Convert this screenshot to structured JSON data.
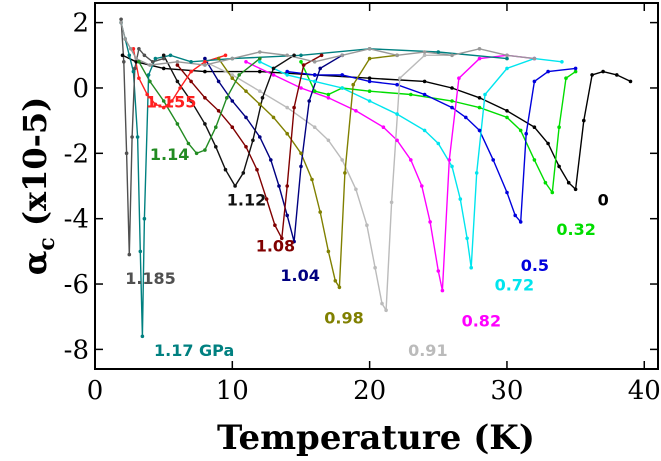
{
  "chart_data": {
    "type": "line",
    "xlabel": "Temperature (K)",
    "ylabel_main": "α",
    "ylabel_sub": "c",
    "ylabel_rest": " (x10-5)",
    "xlim": [
      0,
      41
    ],
    "ylim": [
      -8.6,
      2.6
    ],
    "xticks": [
      0,
      10,
      20,
      30,
      40
    ],
    "yticks": [
      2,
      0,
      -2,
      -4,
      -6,
      -8
    ],
    "grid": false,
    "series": [
      {
        "name": "0",
        "color": "#000000",
        "label_at": [
          36.6,
          -3.6
        ],
        "x": [
          2,
          3,
          5,
          8,
          12,
          16,
          20,
          24,
          26,
          28,
          30,
          32,
          33,
          33.8,
          34.5,
          35.0,
          35.6,
          36.2,
          37,
          38,
          39
        ],
        "y": [
          1.0,
          0.8,
          0.6,
          0.5,
          0.5,
          0.4,
          0.3,
          0.2,
          0.0,
          -0.3,
          -0.7,
          -1.2,
          -1.7,
          -2.4,
          -2.9,
          -3.1,
          -1.0,
          0.4,
          0.5,
          0.4,
          0.2
        ]
      },
      {
        "name": "0.32",
        "color": "#00dd00",
        "label_at": [
          33.6,
          -4.5
        ],
        "x": [
          15,
          16,
          17,
          18,
          20,
          23,
          26,
          28,
          30,
          31,
          32,
          32.8,
          33.3,
          33.8,
          34.3,
          35
        ],
        "y": [
          0.8,
          -0.1,
          -0.2,
          0.0,
          -0.1,
          -0.2,
          -0.4,
          -0.6,
          -0.9,
          -1.3,
          -2.2,
          -2.9,
          -3.2,
          -1.2,
          0.3,
          0.5
        ]
      },
      {
        "name": "0.5",
        "color": "#0000dd",
        "label_at": [
          31.0,
          -5.6
        ],
        "x": [
          14,
          16,
          18,
          20,
          22,
          24,
          26,
          27,
          28,
          29,
          30,
          30.6,
          31.0,
          31.4,
          32,
          33,
          35
        ],
        "y": [
          0.5,
          0.4,
          0.4,
          0.2,
          0.1,
          -0.2,
          -0.6,
          -0.9,
          -1.3,
          -2.2,
          -3.2,
          -3.9,
          -4.1,
          -1.4,
          0.2,
          0.5,
          0.6
        ]
      },
      {
        "name": "0.72",
        "color": "#00e5ee",
        "label_at": [
          29.1,
          -6.2
        ],
        "x": [
          12,
          14,
          16,
          18,
          20,
          22,
          24,
          25,
          26,
          26.6,
          27.1,
          27.4,
          27.8,
          28.4,
          30,
          32,
          34
        ],
        "y": [
          0.8,
          0.4,
          0.2,
          0.0,
          -0.4,
          -0.8,
          -1.3,
          -1.7,
          -2.4,
          -3.4,
          -4.6,
          -5.5,
          -2.6,
          -0.2,
          0.6,
          0.9,
          0.8
        ]
      },
      {
        "name": "0.82",
        "color": "#ff00ff",
        "label_at": [
          26.7,
          -7.3
        ],
        "x": [
          11,
          13,
          15,
          17,
          19,
          21,
          22,
          23,
          23.8,
          24.4,
          25.0,
          25.3,
          25.8,
          26.5,
          28,
          30,
          32
        ],
        "y": [
          0.8,
          0.4,
          0.0,
          -0.3,
          -0.7,
          -1.2,
          -1.6,
          -2.2,
          -3.0,
          -4.1,
          -5.6,
          -6.2,
          -2.2,
          0.3,
          0.9,
          1.0,
          0.9
        ]
      },
      {
        "name": "0.91",
        "color": "#bbbbbb",
        "label_at": [
          22.8,
          -8.2
        ],
        "x": [
          8,
          10,
          12,
          14,
          16,
          17,
          18,
          19,
          19.8,
          20.4,
          20.9,
          21.2,
          21.6,
          22.2,
          24,
          26
        ],
        "y": [
          0.8,
          0.4,
          -0.1,
          -0.6,
          -1.2,
          -1.6,
          -2.2,
          -3.1,
          -4.2,
          -5.5,
          -6.6,
          -6.8,
          -3.5,
          0.3,
          1.0,
          1.0
        ]
      },
      {
        "name": "0.98",
        "color": "#808000",
        "label_at": [
          16.7,
          -7.2
        ],
        "x": [
          9,
          10,
          11,
          12,
          13,
          14,
          15,
          15.8,
          16.4,
          17.0,
          17.5,
          17.8,
          18.2,
          18.8,
          20,
          22
        ],
        "y": [
          0.9,
          0.3,
          -0.1,
          -0.5,
          -0.9,
          -1.4,
          -2.0,
          -2.8,
          -3.8,
          -5.0,
          -5.9,
          -6.1,
          -2.6,
          0.1,
          0.9,
          1.0
        ]
      },
      {
        "name": "1.04",
        "color": "#000080",
        "label_at": [
          13.5,
          -5.9
        ],
        "x": [
          8,
          9,
          10,
          11,
          12,
          12.8,
          13.4,
          14.0,
          14.5,
          15.0,
          15.6,
          16.4,
          18
        ],
        "y": [
          0.9,
          0.2,
          -0.4,
          -0.9,
          -1.5,
          -2.2,
          -3.0,
          -3.9,
          -4.7,
          -2.4,
          -0.4,
          0.6,
          1.0
        ]
      },
      {
        "name": "1.08",
        "color": "#800000",
        "label_at": [
          11.7,
          -5.0
        ],
        "x": [
          6,
          7,
          8,
          9,
          10,
          11,
          11.8,
          12.5,
          13.1,
          13.6,
          14.0,
          14.5,
          15.2,
          16.5
        ],
        "y": [
          0.7,
          0.2,
          -0.3,
          -0.7,
          -1.2,
          -1.8,
          -2.5,
          -3.4,
          -4.2,
          -4.6,
          -3.0,
          -0.6,
          0.7,
          1.0
        ]
      },
      {
        "name": "1.12",
        "color": "#111111",
        "label_at": [
          9.6,
          -3.6
        ],
        "x": [
          5,
          6,
          7,
          8,
          8.8,
          9.5,
          10.2,
          10.8,
          11.5,
          12.2,
          13,
          14.5
        ],
        "y": [
          1.0,
          0.2,
          -0.4,
          -1.1,
          -1.8,
          -2.5,
          -3.0,
          -2.6,
          -1.6,
          -0.3,
          0.6,
          1.0
        ]
      },
      {
        "name": "1.14",
        "color": "#228b22",
        "label_at": [
          4.0,
          -2.2
        ],
        "x": [
          3.2,
          4,
          5,
          6,
          6.8,
          7.4,
          8,
          8.8,
          9.6,
          10.5,
          12
        ],
        "y": [
          0.8,
          0.2,
          -0.4,
          -1.1,
          -1.7,
          -2.0,
          -1.9,
          -1.2,
          -0.3,
          0.4,
          0.9
        ]
      },
      {
        "name": "1.155",
        "color": "#ff2020",
        "label_at": [
          3.7,
          -0.6
        ],
        "x": [
          2.8,
          3.2,
          3.8,
          4.4,
          5.0,
          5.6,
          6.2,
          7.0,
          8.0,
          9.5
        ],
        "y": [
          1.2,
          0.3,
          -0.2,
          -0.5,
          -0.6,
          -0.4,
          0.0,
          0.5,
          0.8,
          1.0
        ]
      },
      {
        "name": "1.17 GPa",
        "color": "#008080",
        "label_at": [
          4.3,
          -8.2
        ],
        "x": [
          1.9,
          2.2,
          2.5,
          2.8,
          3.1,
          3.3,
          3.45,
          3.6,
          3.9,
          4.4,
          5.5,
          7,
          10,
          15,
          20,
          25,
          30
        ],
        "y": [
          2.0,
          1.5,
          1.0,
          0.5,
          -1.5,
          -5.0,
          -7.6,
          -4.0,
          0.4,
          0.9,
          1.0,
          0.8,
          0.9,
          1.0,
          1.2,
          1.1,
          0.9
        ]
      },
      {
        "name": "1.185",
        "color": "#505050",
        "label_at": [
          2.2,
          -6.0
        ],
        "x": [
          1.9,
          2.1,
          2.3,
          2.5,
          2.7,
          2.9,
          3.2,
          3.6,
          4.2,
          5.0
        ],
        "y": [
          2.1,
          0.8,
          -2.0,
          -5.1,
          -1.5,
          0.6,
          1.2,
          1.0,
          0.8,
          0.9
        ]
      },
      {
        "name": "",
        "color": "#999999",
        "label_at": null,
        "x": [
          1.9,
          2.2,
          2.6,
          3.0,
          4,
          6,
          8,
          10,
          12,
          14,
          16,
          18,
          20,
          22,
          24,
          26,
          28,
          30,
          32
        ],
        "y": [
          2.0,
          1.5,
          1.2,
          0.9,
          0.7,
          0.8,
          0.7,
          0.9,
          1.1,
          1.0,
          0.8,
          1.0,
          1.2,
          1.0,
          1.1,
          1.0,
          1.2,
          1.0,
          0.9
        ]
      }
    ]
  }
}
